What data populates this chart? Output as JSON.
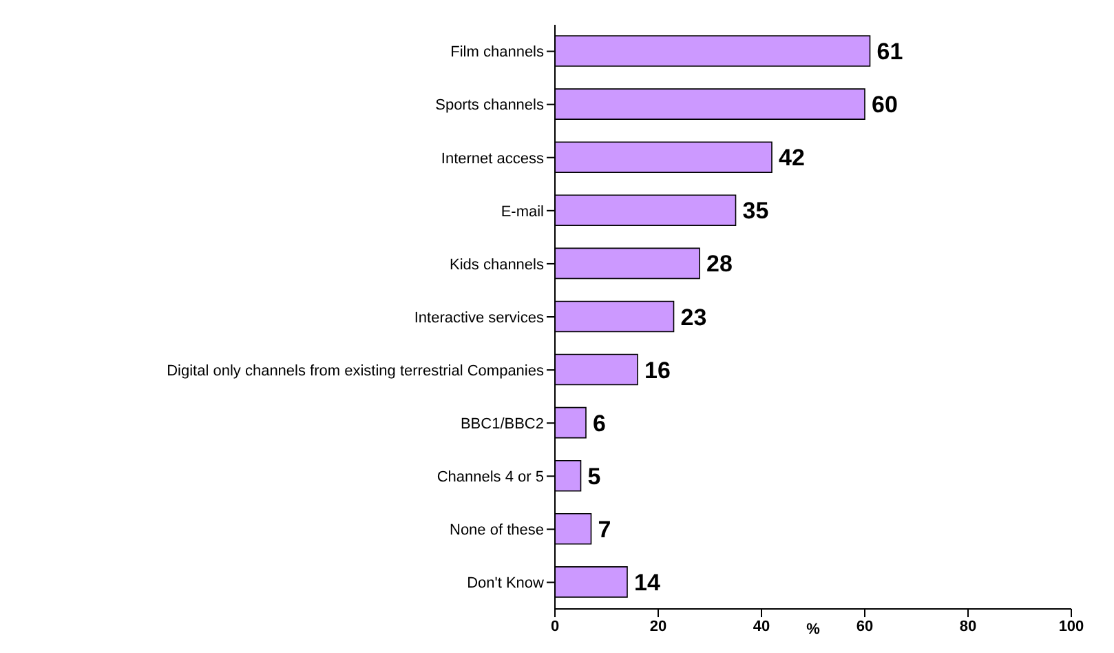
{
  "chart_data": {
    "type": "bar",
    "orientation": "horizontal",
    "categories": [
      "Film channels",
      "Sports channels",
      "Internet access",
      "E-mail",
      "Kids channels",
      "Interactive services",
      "Digital only channels from existing terrestrial Companies",
      "BBC1/BBC2",
      "Channels 4 or 5",
      "None of these",
      "Don't Know"
    ],
    "values": [
      61,
      60,
      42,
      35,
      28,
      23,
      16,
      6,
      5,
      7,
      14
    ],
    "color": "#cc99ff",
    "data_labels": true,
    "xlabel": "%",
    "xlim": [
      0,
      100
    ],
    "xticks": [
      0,
      20,
      40,
      60,
      80,
      100
    ],
    "grid": false,
    "legend": false
  }
}
